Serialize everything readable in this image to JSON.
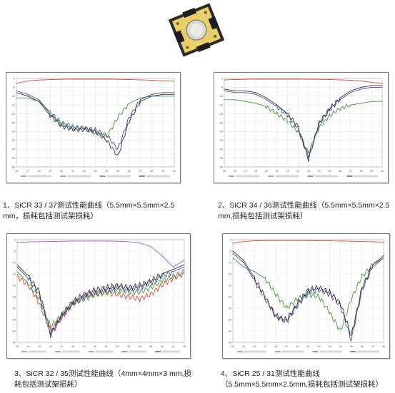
{
  "product_photo": {
    "icon": "sicr-chip-photo",
    "colors": {
      "board": "#e8cf6a",
      "frame": "#2b2b2b",
      "disk": "#d9d9cf"
    }
  },
  "captions": [
    "1、SiCR 33 / 37测试性能曲线（5.5mm×5.5mm×2.5 mm，损耗包括测试架损耗）",
    "2、SiCR 34 / 36测试性能曲线（5.5mm×5.5mm×2.5 mm,损耗包括测试架损耗）",
    "3、SiCR 32 / 35测试性能曲线（4mm×4mm×3 mm,损耗包括测试架损耗）",
    "4、SiCR 25 / 31测试性能曲线（5.5mm×5.5mm×2.5mm,损耗包括测试架损耗）"
  ],
  "chart_data": [
    {
      "type": "line",
      "title": "",
      "x": [
        26,
        27,
        28,
        29,
        30,
        31,
        32,
        33,
        34,
        35,
        36,
        37,
        38,
        39,
        40
      ],
      "xlim": [
        26,
        40
      ],
      "ylim": [
        -50,
        0
      ],
      "x_ticks": [
        "26",
        "27",
        "28",
        "29",
        "30",
        "31",
        "32",
        "33",
        "34",
        "35",
        "36",
        "37",
        "38",
        "39",
        "40"
      ],
      "y_ticks": [
        "0",
        "-5",
        "-10",
        "-15",
        "-20",
        "-25",
        "-30",
        "-35",
        "-40",
        "-45",
        "-50"
      ],
      "grid": true,
      "legend_position": "bottom",
      "series": [
        {
          "name": "",
          "color": "#e0463c",
          "values": [
            -2.8,
            -1.4,
            -0.9,
            -0.6,
            -0.5,
            -0.4,
            -0.4,
            -0.4,
            -0.4,
            -0.5,
            -0.6,
            -0.8,
            -1.0,
            -1.3,
            -1.6
          ]
        },
        {
          "name": "",
          "color": "#3f9a3a",
          "values": [
            -11,
            -11,
            -13,
            -19,
            -25,
            -27,
            -28,
            -31,
            -33,
            -22,
            -14,
            -11,
            -10,
            -10,
            -10
          ]
        },
        {
          "name": "",
          "color": "#4a4aa8",
          "values": [
            -7,
            -9,
            -12,
            -20,
            -26,
            -28,
            -28,
            -29,
            -32,
            -40,
            -22,
            -12,
            -9,
            -8,
            -8
          ]
        },
        {
          "name": "",
          "color": "#333333",
          "values": [
            -8,
            -10,
            -13,
            -21,
            -27,
            -29,
            -29,
            -30,
            -35,
            -44,
            -24,
            -13,
            -10,
            -9,
            -9
          ]
        }
      ]
    },
    {
      "type": "line",
      "title": "",
      "x": [
        25,
        26,
        27,
        28,
        29,
        30,
        31,
        32,
        33,
        34,
        35,
        36,
        37,
        38,
        39,
        40
      ],
      "xlim": [
        25,
        40
      ],
      "ylim": [
        -50,
        0
      ],
      "x_ticks": [
        "25",
        "26",
        "27",
        "28",
        "29",
        "30",
        "31",
        "32",
        "33",
        "34",
        "35",
        "36",
        "37",
        "38",
        "39",
        "40"
      ],
      "y_ticks": [
        "0",
        "-5",
        "-10",
        "-15",
        "-20",
        "-25",
        "-30",
        "-35",
        "-40",
        "-45",
        "-50"
      ],
      "grid": true,
      "legend_position": "bottom",
      "series": [
        {
          "name": "",
          "color": "#e0463c",
          "values": [
            -0.8,
            -0.6,
            -0.5,
            -0.4,
            -0.4,
            -0.4,
            -0.4,
            -0.4,
            -0.5,
            -0.5,
            -0.6,
            -0.8,
            -1.0,
            -1.4,
            -2.2,
            -2.9
          ]
        },
        {
          "name": "",
          "color": "#3f9a3a",
          "values": [
            -12,
            -12,
            -13,
            -14,
            -16,
            -20,
            -24,
            -30,
            -42,
            -28,
            -21,
            -17,
            -15,
            -14,
            -13,
            -13
          ]
        },
        {
          "name": "",
          "color": "#4a4aa8",
          "values": [
            -7,
            -8,
            -8,
            -9,
            -12,
            -16,
            -21,
            -28,
            -44,
            -26,
            -18,
            -12,
            -8,
            -6,
            -5,
            -5
          ]
        },
        {
          "name": "",
          "color": "#333333",
          "values": [
            -6,
            -7,
            -7,
            -8,
            -11,
            -15,
            -20,
            -27,
            -46,
            -25,
            -17,
            -11,
            -7,
            -5,
            -4,
            -4
          ]
        }
      ]
    },
    {
      "type": "line",
      "title": "",
      "x": [
        23,
        24,
        25,
        26,
        27,
        28,
        29,
        30,
        31,
        32,
        33,
        34,
        35,
        36,
        37,
        38
      ],
      "xlim": [
        23,
        38
      ],
      "ylim": [
        -45,
        0
      ],
      "x_ticks": [
        "23",
        "24",
        "25",
        "26",
        "27",
        "28",
        "29",
        "30",
        "31",
        "32",
        "33",
        "34",
        "35",
        "36",
        "37",
        "38"
      ],
      "y_ticks": [
        "0",
        "-5",
        "-10",
        "-15",
        "-20",
        "-25",
        "-30",
        "-35",
        "-40",
        "-45"
      ],
      "grid": true,
      "legend_position": "bottom",
      "series": [
        {
          "name": "",
          "color": "#9a5bb0",
          "values": [
            -1.2,
            -1.0,
            -0.9,
            -0.8,
            -0.7,
            -0.6,
            -0.6,
            -0.6,
            -0.6,
            -0.7,
            -0.9,
            -1.5,
            -3,
            -7,
            -12,
            -9
          ]
        },
        {
          "name": "",
          "color": "#e0463c",
          "values": [
            -16,
            -20,
            -28,
            -40,
            -34,
            -28,
            -25,
            -24,
            -23,
            -24,
            -25,
            -26,
            -24,
            -20,
            -17,
            -15
          ]
        },
        {
          "name": "",
          "color": "#3f9a3a",
          "values": [
            -14,
            -19,
            -26,
            -38,
            -33,
            -28,
            -26,
            -24,
            -23,
            -22,
            -23,
            -23,
            -21,
            -18,
            -16,
            -14
          ]
        },
        {
          "name": "",
          "color": "#4a4aa8",
          "values": [
            -12,
            -17,
            -24,
            -42,
            -34,
            -28,
            -25,
            -23,
            -22,
            -21,
            -22,
            -21,
            -19,
            -16,
            -14,
            -12
          ]
        },
        {
          "name": "",
          "color": "#333333",
          "values": [
            -11,
            -16,
            -23,
            -41,
            -33,
            -27,
            -24,
            -22,
            -21,
            -20,
            -21,
            -20,
            -18,
            -15,
            -13,
            -11
          ]
        }
      ]
    },
    {
      "type": "line",
      "title": "",
      "x": [
        24,
        25,
        26,
        27,
        28,
        29,
        30,
        31,
        32,
        33,
        34,
        35,
        36,
        37,
        38
      ],
      "xlim": [
        24,
        38
      ],
      "ylim": [
        -45,
        0
      ],
      "x_ticks": [
        "24",
        "25",
        "26",
        "27",
        "28",
        "29",
        "30",
        "31",
        "32",
        "33",
        "34",
        "35",
        "36",
        "37",
        "38"
      ],
      "y_ticks": [
        "0",
        "-5",
        "-10",
        "-15",
        "-20",
        "-25",
        "-30",
        "-35",
        "-40",
        "-45"
      ],
      "grid": true,
      "legend_position": "bottom",
      "series": [
        {
          "name": "",
          "color": "#e0463c",
          "values": [
            -1.6,
            -0.8,
            -0.5,
            -0.4,
            -0.4,
            -0.4,
            -0.4,
            -0.4,
            -0.5,
            -0.5,
            -0.6,
            -0.7,
            -0.8,
            -0.9,
            -1.1
          ]
        },
        {
          "name": "",
          "color": "#3f9a3a",
          "values": [
            -8,
            -12,
            -14,
            -17,
            -24,
            -30,
            -26,
            -24,
            -25,
            -32,
            -40,
            -26,
            -16,
            -11,
            -8
          ]
        },
        {
          "name": "",
          "color": "#4a4aa8",
          "values": [
            -6,
            -10,
            -18,
            -26,
            -33,
            -36,
            -29,
            -23,
            -22,
            -24,
            -29,
            -44,
            -22,
            -12,
            -8
          ]
        },
        {
          "name": "",
          "color": "#333333",
          "values": [
            -5,
            -9,
            -17,
            -25,
            -34,
            -35,
            -28,
            -22,
            -21,
            -23,
            -28,
            -42,
            -21,
            -11,
            -7
          ]
        }
      ]
    }
  ]
}
